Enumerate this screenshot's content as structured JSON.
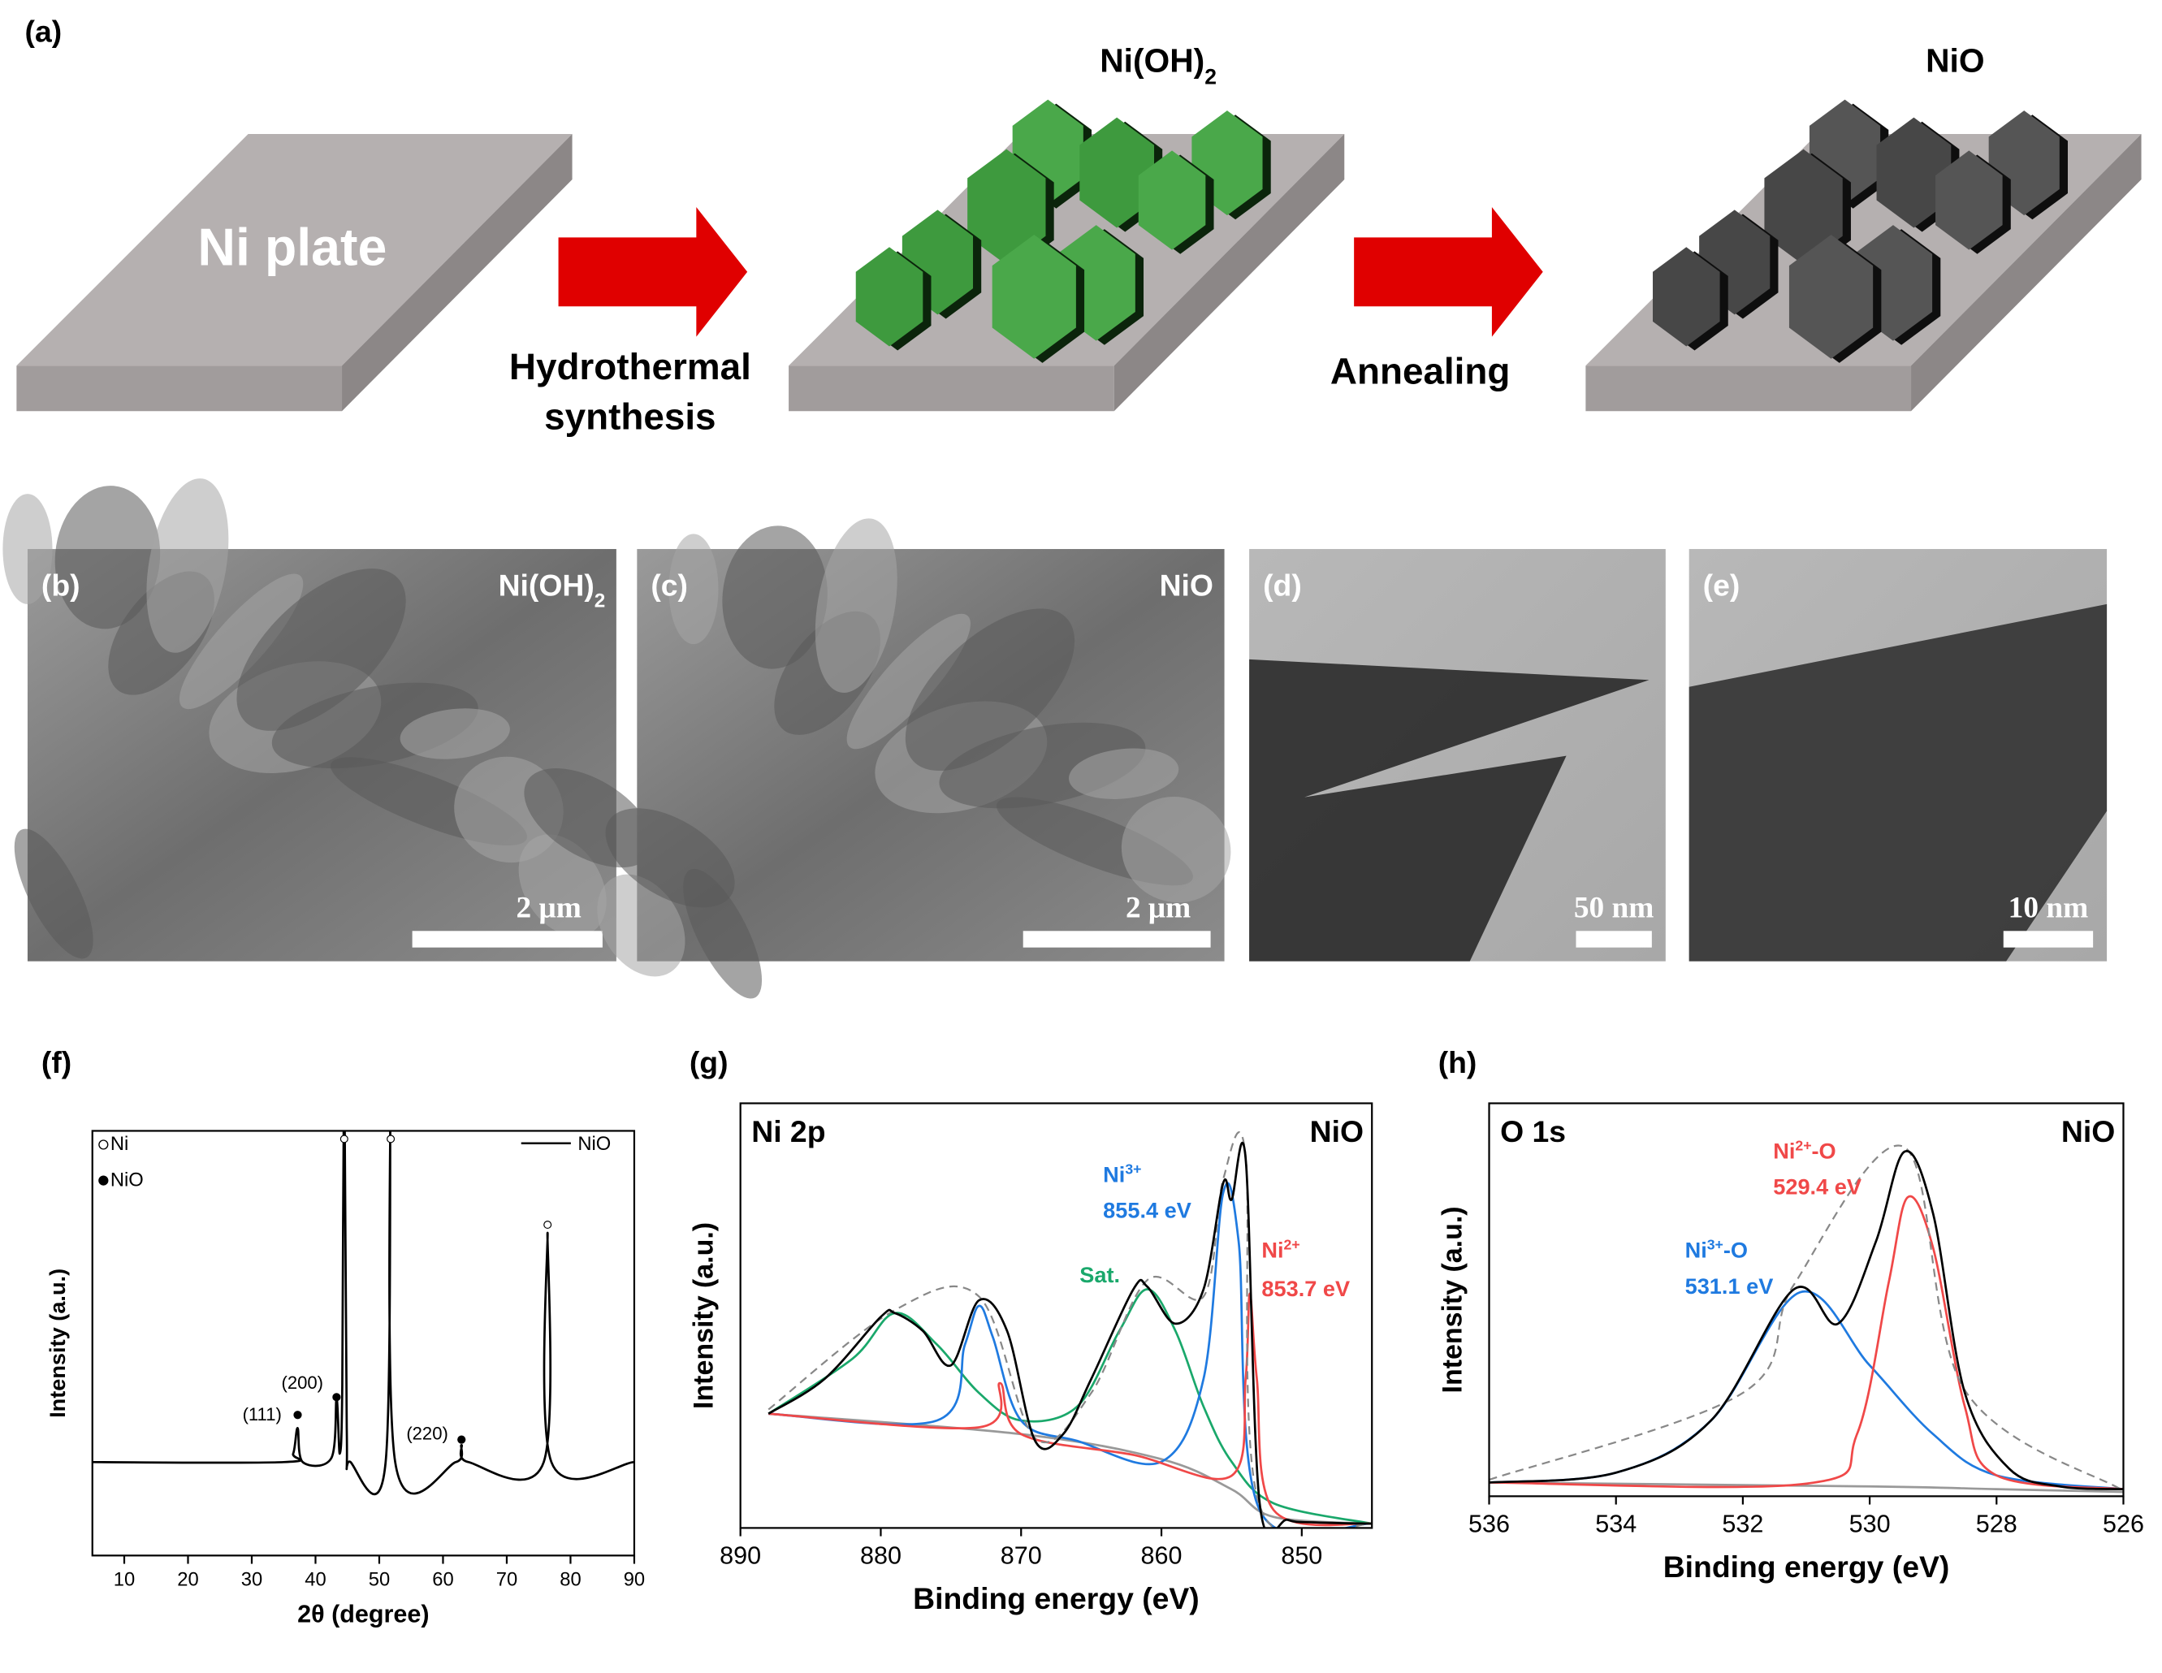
{
  "schematic": {
    "label": "(a)",
    "plate": "Ni plate",
    "step1": [
      "Hydrothermal",
      "synthesis"
    ],
    "product1": {
      "text": "Ni(OH)",
      "sub": "2"
    },
    "step2": "Annealing",
    "product2": {
      "text": "NiO"
    }
  },
  "micrographs": [
    {
      "label": "(b)",
      "sample": {
        "text": "Ni(OH)",
        "sub": "2"
      },
      "scale_bar": "2 μm"
    },
    {
      "label": "(c)",
      "sample": {
        "text": "NiO"
      },
      "scale_bar": "2 μm"
    },
    {
      "label": "(d)",
      "scale_bar": "50 nm"
    },
    {
      "label": "(e)",
      "scale_bar": "10 nm"
    }
  ],
  "chart_data": [
    {
      "type": "line",
      "panel": "(f)",
      "xlabel": "2θ (degree)",
      "ylabel": "Intensity (a.u.)",
      "xlim": [
        5,
        90
      ],
      "xticks": [
        10,
        20,
        30,
        40,
        50,
        60,
        70,
        80,
        90
      ],
      "ylim": [
        0,
        100
      ],
      "legend_position": "upper right",
      "series": [
        {
          "name": "NiO",
          "color": "#000000",
          "x": [
            5,
            35,
            36.5,
            37.2,
            38,
            42.5,
            43.3,
            43.8,
            44.2,
            44.5,
            44.9,
            45.5,
            51,
            51.8,
            52.5,
            62,
            62.9,
            64,
            75.8,
            76.4,
            77,
            90
          ],
          "values": [
            22,
            22,
            24,
            30,
            22,
            23,
            37,
            24,
            40,
            120,
            30,
            22,
            22,
            120,
            22,
            22,
            26,
            22,
            22,
            76,
            22,
            22
          ]
        }
      ],
      "marker_legend": [
        "Ni",
        "NiO"
      ],
      "ni_peaks": {
        "x": [
          44.5,
          51.8,
          76.4
        ],
        "y": [
          98.1,
          98.1,
          77.9
        ]
      },
      "nio_peaks": {
        "x": [
          37.2,
          43.3,
          62.9
        ],
        "y": [
          33.1,
          37.3,
          27.3
        ],
        "labels": [
          "(111)",
          "(200)",
          "(220)"
        ]
      }
    },
    {
      "type": "line",
      "panel": "(g)",
      "title": "Ni 2p",
      "sample": "NiO",
      "xlabel": "Binding energy (eV)",
      "ylabel": "Intensity (a.u.)",
      "xlim": [
        890,
        845
      ],
      "xticks": [
        890,
        880,
        870,
        860,
        850
      ],
      "ylim": [
        0,
        100
      ],
      "series": [
        {
          "color": "#999999",
          "x": [
            888,
            870,
            860,
            855,
            852,
            845
          ],
          "values": [
            26.9,
            22.1,
            16.2,
            9.1,
            2.6,
            1.0
          ]
        },
        {
          "color": "#1aa86b",
          "x": [
            888,
            882,
            879,
            876,
            873,
            870,
            866,
            863,
            861,
            859,
            857,
            855,
            852,
            845
          ],
          "values": [
            26.9,
            39.9,
            50.6,
            43.2,
            31.8,
            25.3,
            28.6,
            46.4,
            56.2,
            46.4,
            28.6,
            15.6,
            5.8,
            1.0
          ]
        },
        {
          "color": "#1f7ae0",
          "x": [
            888,
            876,
            874,
            873,
            872,
            870,
            866,
            860,
            857,
            855.6,
            854.5,
            853,
            845
          ],
          "values": [
            26.9,
            25.3,
            43.2,
            52.3,
            44.8,
            25.3,
            20.5,
            15.6,
            35.1,
            78.9,
            67.5,
            4.2,
            1.0
          ]
        },
        {
          "color": "#f04848",
          "x": [
            888,
            873,
            871.5,
            870,
            862,
            855,
            854,
            853.7,
            853.2,
            852,
            845
          ],
          "values": [
            26.9,
            23.7,
            34.1,
            22.1,
            17.2,
            12.3,
            35.1,
            55.2,
            35.1,
            4.2,
            1.0
          ]
        },
        {
          "color": "#888888",
          "dash": true,
          "x": [
            888,
            879,
            873,
            869,
            865,
            861,
            857,
            855.6,
            854,
            853,
            845
          ],
          "values": [
            27.9,
            51.3,
            54.5,
            21.1,
            31.8,
            58.4,
            54.5,
            82.1,
            87.7,
            5.2,
            1.0
          ]
        },
        {
          "color": "#000000",
          "x": [
            888,
            884,
            880,
            879,
            877,
            875,
            873,
            871,
            869,
            867,
            865,
            862,
            861,
            859,
            857,
            855.6,
            855,
            854,
            853,
            851,
            849,
            845
          ],
          "values": [
            26.9,
            35.1,
            49.7,
            50.6,
            46.4,
            38.3,
            53.6,
            46.4,
            20.5,
            22.1,
            35.1,
            56.2,
            56.8,
            48.1,
            56.2,
            81.2,
            77.3,
            87.0,
            5.8,
            1.9,
            1.3,
            1.0
          ]
        }
      ],
      "annotations": [
        {
          "label": {
            "text": "Ni",
            "sup": "3+"
          },
          "energy": "855.4 eV",
          "color": "#1f7ae0"
        },
        {
          "label": {
            "text": "Sat."
          },
          "color": "#1aa86b"
        },
        {
          "label": {
            "text": "Ni",
            "sup": "2+"
          },
          "energy": "853.7 eV",
          "color": "#f04848"
        }
      ]
    },
    {
      "type": "line",
      "panel": "(h)",
      "title": "O 1s",
      "sample": "NiO",
      "xlabel": "Binding energy (eV)",
      "ylabel": "Intensity (a.u.)",
      "xlim": [
        536,
        526
      ],
      "xticks": [
        536,
        534,
        532,
        530,
        528,
        526
      ],
      "ylim": [
        0,
        100
      ],
      "series": [
        {
          "color": "#999999",
          "x": [
            536,
            530,
            528,
            526
          ],
          "values": [
            3.5,
            2.5,
            1.8,
            1.1
          ]
        },
        {
          "color": "#1f7ae0",
          "x": [
            536,
            534,
            532.5,
            531.1,
            530,
            529,
            528,
            526
          ],
          "values": [
            3.5,
            6.0,
            19.3,
            51.9,
            33.3,
            15.8,
            5.3,
            1.8
          ]
        },
        {
          "color": "#f04848",
          "x": [
            536,
            531,
            530.2,
            529.7,
            529.4,
            529,
            528.5,
            528,
            526
          ],
          "values": [
            3.5,
            3.2,
            15.8,
            54.4,
            76.1,
            63.2,
            22.8,
            5.3,
            1.8
          ]
        },
        {
          "color": "#888888",
          "dash": true,
          "x": [
            536,
            532,
            531.2,
            529.45,
            528.5,
            526
          ],
          "values": [
            4.2,
            26.3,
            53.7,
            88.8,
            27.0,
            1.4
          ]
        },
        {
          "color": "#000000",
          "x": [
            536,
            534,
            532.5,
            531.2,
            530.5,
            529.9,
            529.45,
            529,
            528.5,
            527.8,
            527,
            526
          ],
          "values": [
            3.5,
            6.0,
            19.3,
            52.6,
            43.9,
            64.9,
            87.7,
            71.9,
            26.3,
            7.0,
            2.5,
            1.8
          ]
        }
      ],
      "annotations": [
        {
          "label": {
            "text": "Ni",
            "sup": "3+",
            "tail": "-O"
          },
          "energy": "531.1 eV",
          "color": "#1f7ae0"
        },
        {
          "label": {
            "text": "Ni",
            "sup": "2+",
            "tail": "-O"
          },
          "energy": "529.4 eV",
          "color": "#f04848"
        }
      ]
    }
  ]
}
